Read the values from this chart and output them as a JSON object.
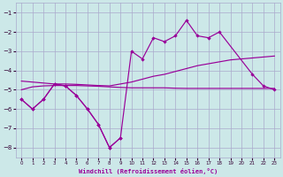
{
  "x_all": [
    0,
    1,
    2,
    3,
    4,
    5,
    6,
    7,
    8,
    9,
    10,
    11,
    12,
    13,
    14,
    15,
    16,
    17,
    18,
    19,
    20,
    21,
    22,
    23
  ],
  "line_spiky_x": [
    0,
    1,
    2,
    3,
    4,
    5,
    6,
    7,
    8,
    9,
    10,
    11,
    12,
    13,
    14,
    15,
    16,
    17,
    18,
    21,
    22,
    23
  ],
  "line_spiky_y": [
    -5.5,
    -6.0,
    -5.5,
    -4.7,
    -4.8,
    -5.3,
    -6.0,
    -6.8,
    -8.0,
    -7.5,
    -3.0,
    -3.4,
    -2.3,
    -2.5,
    -2.2,
    -1.4,
    -2.2,
    -2.3,
    -2.0,
    -4.2,
    -4.8,
    -5.0
  ],
  "line_zigzag_x": [
    0,
    1,
    2,
    3,
    4,
    5,
    6,
    7,
    8,
    9
  ],
  "line_zigzag_y": [
    -5.5,
    -6.0,
    -5.5,
    -4.7,
    -4.8,
    -5.3,
    -6.0,
    -6.8,
    -8.0,
    -7.5
  ],
  "line_rise_x": [
    0,
    1,
    2,
    3,
    4,
    5,
    6,
    7,
    8,
    9,
    10,
    11,
    12,
    13,
    14,
    15,
    16,
    17,
    18,
    19,
    20,
    21,
    22,
    23
  ],
  "line_rise_y": [
    -4.55,
    -4.6,
    -4.65,
    -4.7,
    -4.7,
    -4.72,
    -4.75,
    -4.78,
    -4.8,
    -4.7,
    -4.6,
    -4.45,
    -4.3,
    -4.2,
    -4.05,
    -3.9,
    -3.75,
    -3.65,
    -3.55,
    -3.45,
    -3.4,
    -3.35,
    -3.3,
    -3.25
  ],
  "line_flat_x": [
    0,
    1,
    2,
    3,
    4,
    5,
    6,
    7,
    8,
    9,
    10,
    11,
    12,
    13,
    14,
    15,
    16,
    17,
    18,
    19,
    20,
    21,
    22,
    23
  ],
  "line_flat_y": [
    -5.0,
    -4.85,
    -4.8,
    -4.78,
    -4.78,
    -4.78,
    -4.8,
    -4.82,
    -4.85,
    -4.88,
    -4.9,
    -4.9,
    -4.9,
    -4.9,
    -4.92,
    -4.93,
    -4.93,
    -4.93,
    -4.93,
    -4.93,
    -4.93,
    -4.93,
    -4.93,
    -4.93
  ],
  "ylim": [
    -8.5,
    -0.5
  ],
  "xlim": [
    -0.5,
    23.5
  ],
  "yticks": [
    -8,
    -7,
    -6,
    -5,
    -4,
    -3,
    -2,
    -1
  ],
  "xticks": [
    0,
    1,
    2,
    3,
    4,
    5,
    6,
    7,
    8,
    9,
    10,
    11,
    12,
    13,
    14,
    15,
    16,
    17,
    18,
    19,
    20,
    21,
    22,
    23
  ],
  "xlabel": "Windchill (Refroidissement éolien,°C)",
  "bg_color": "#cce8e8",
  "line_color": "#990099",
  "grid_color": "#aaaacc"
}
